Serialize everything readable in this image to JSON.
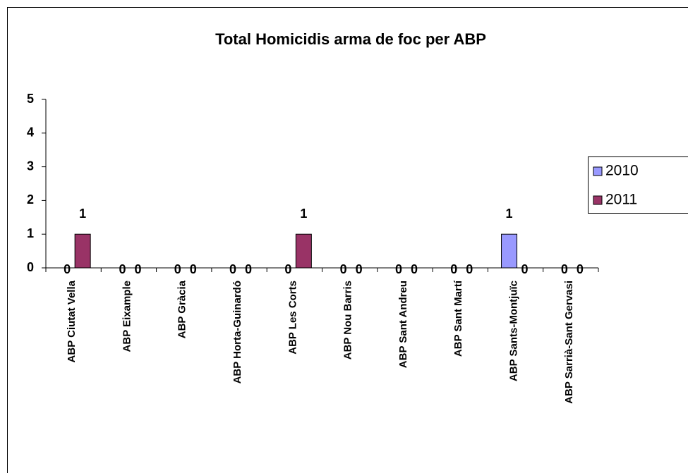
{
  "chart_data": {
    "type": "bar",
    "title": "Total Homicidis arma de foc per ABP",
    "categories": [
      "ABP Ciutat Vella",
      "ABP Eixample",
      "ABP Gràcia",
      "ABP Horta-Guinardó",
      "ABP Les Corts",
      "ABP Nou Barris",
      "ABP Sant Andreu",
      "ABP Sant Martí",
      "ABP Sants-Montjuïc",
      "ABP Sarrià-Sant Gervasi"
    ],
    "series": [
      {
        "name": "2010",
        "color": "#9999ff",
        "values": [
          0,
          0,
          0,
          0,
          0,
          0,
          0,
          0,
          1,
          0
        ]
      },
      {
        "name": "2011",
        "color": "#993366",
        "values": [
          1,
          0,
          0,
          0,
          1,
          0,
          0,
          0,
          0,
          0
        ]
      }
    ],
    "ylim": [
      0,
      5
    ],
    "yticks": [
      0,
      1,
      2,
      3,
      4,
      5
    ],
    "grid": false,
    "legend": "right"
  }
}
